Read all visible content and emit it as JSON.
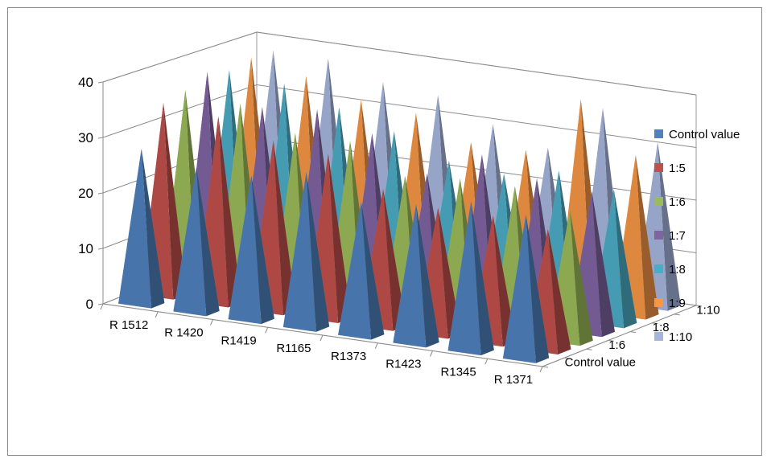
{
  "chart_data": {
    "type": "bar",
    "subtype": "3d-pyramid",
    "title": "",
    "xlabel": "",
    "ylabel": "",
    "ylim": [
      0,
      40
    ],
    "yticks": [
      0,
      10,
      20,
      30,
      40
    ],
    "grid": true,
    "legend_position": "right",
    "categories": [
      "R 1512",
      "R 1420",
      "R1419",
      "R1165",
      "R1373",
      "R1423",
      "R1345",
      "R 1371"
    ],
    "depth_axis_labels": [
      "Control value",
      "1:6",
      "1:8",
      "1:10"
    ],
    "series": [
      {
        "name": "Control value",
        "color": "#4F81BD",
        "values": [
          28,
          26,
          26,
          28,
          24,
          25,
          27,
          26
        ]
      },
      {
        "name": "1:5",
        "color": "#C0504D",
        "values": [
          35,
          34,
          31,
          30,
          25,
          23,
          23,
          22
        ]
      },
      {
        "name": "1:6",
        "color": "#9BBB59",
        "values": [
          36,
          35,
          31,
          31,
          26,
          27,
          27,
          24
        ]
      },
      {
        "name": "1:7",
        "color": "#8064A2",
        "values": [
          38,
          33,
          34,
          31,
          25,
          30,
          27,
          26
        ]
      },
      {
        "name": "1:8",
        "color": "#4BACC6",
        "values": [
          37,
          36,
          33,
          30,
          26,
          25,
          27,
          25
        ]
      },
      {
        "name": "1:9",
        "color": "#F79646",
        "values": [
          38,
          36,
          33,
          32,
          28,
          28,
          39,
          30
        ]
      },
      {
        "name": "1:10",
        "color": "#A5B6DD",
        "values": [
          38,
          38,
          35,
          34,
          30,
          27,
          36,
          31
        ]
      }
    ]
  }
}
